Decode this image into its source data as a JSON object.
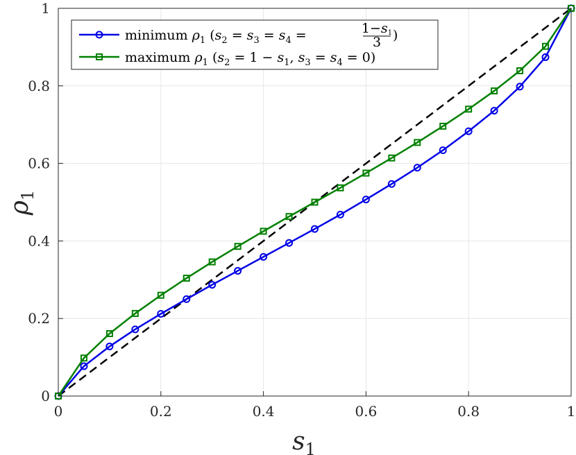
{
  "chart_data": {
    "type": "line",
    "xlabel": "s",
    "xlabel_sub": "1",
    "ylabel": "ρ",
    "ylabel_sub": "1",
    "xlim": [
      0,
      1
    ],
    "ylim": [
      0,
      1
    ],
    "x_ticks": [
      "0",
      "0.2",
      "0.4",
      "0.6",
      "0.8",
      "1"
    ],
    "y_ticks": [
      "0",
      "0.2",
      "0.4",
      "0.6",
      "0.8",
      "1"
    ],
    "grid": true,
    "legend_position": "top-left",
    "series": [
      {
        "name": "minimum ρ1 (s2 = s3 = s4 = (1−s1)/3)",
        "color": "#0000e6",
        "marker": "circle",
        "x": [
          0,
          0.05,
          0.1,
          0.15,
          0.2,
          0.25,
          0.3,
          0.35,
          0.4,
          0.45,
          0.5,
          0.55,
          0.6,
          0.65,
          0.7,
          0.75,
          0.8,
          0.85,
          0.9,
          0.95,
          1
        ],
        "y": [
          0,
          0.077,
          0.128,
          0.172,
          0.212,
          0.25,
          0.287,
          0.323,
          0.359,
          0.395,
          0.431,
          0.468,
          0.507,
          0.547,
          0.589,
          0.634,
          0.683,
          0.736,
          0.798,
          0.874,
          1
        ]
      },
      {
        "name": "maximum ρ1 (s2 = 1 − s1, s3 = s4 = 0)",
        "color": "#008000",
        "marker": "square",
        "x": [
          0,
          0.05,
          0.1,
          0.15,
          0.2,
          0.25,
          0.3,
          0.35,
          0.4,
          0.45,
          0.5,
          0.55,
          0.6,
          0.65,
          0.7,
          0.75,
          0.8,
          0.85,
          0.9,
          0.95,
          1
        ],
        "y": [
          0,
          0.098,
          0.161,
          0.213,
          0.26,
          0.304,
          0.346,
          0.386,
          0.425,
          0.463,
          0.5,
          0.537,
          0.575,
          0.614,
          0.654,
          0.696,
          0.74,
          0.787,
          0.839,
          0.902,
          1
        ]
      },
      {
        "color": "#000000",
        "style": "dashed",
        "x": [
          0,
          1
        ],
        "y": [
          0,
          1
        ]
      }
    ]
  }
}
